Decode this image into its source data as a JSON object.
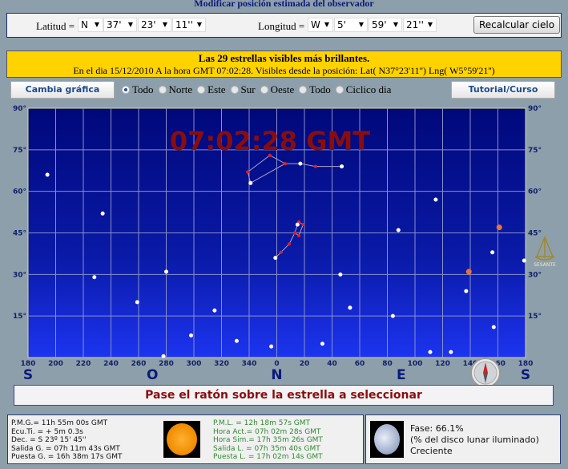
{
  "header": {
    "title": "Modificar posición estimada del observador"
  },
  "form": {
    "lat_label": "Latitud =",
    "lat": {
      "hemisphere": "N",
      "deg": "37'",
      "min": "23'",
      "sec": "11''"
    },
    "lng_label": "Longitud =",
    "lng": {
      "hemisphere": "W",
      "deg": "5'",
      "min": "59'",
      "sec": "21''"
    },
    "recalc_label": "Recalcular cielo"
  },
  "info": {
    "headline": "Las 29 estrellas visibles más brillantes.",
    "detail": "En el dia 15/12/2010 A la hora GMT 07:02:28. Visibles desde la posición: Lat( N37°23'11'') Lng( W5°59'21'')"
  },
  "controls": {
    "change_chart_label": "Cambia gráfica",
    "tutorial_label": "Tutorial/Curso",
    "radios": [
      {
        "label": "Todo",
        "checked": true
      },
      {
        "label": "Norte"
      },
      {
        "label": "Este"
      },
      {
        "label": "Sur"
      },
      {
        "label": "Oeste"
      },
      {
        "label": "Todo"
      },
      {
        "label": "Ciclico dia"
      }
    ]
  },
  "chart_data": {
    "type": "scatter",
    "overlay_time": "07:02:28 GMT",
    "xlim": [
      180,
      540
    ],
    "ylim": [
      0,
      90
    ],
    "grid": true,
    "x_ticks": [
      "180",
      "200",
      "220",
      "240",
      "260",
      "280",
      "300",
      "320",
      "340",
      "0",
      "20",
      "40",
      "60",
      "80",
      "100",
      "120",
      "140",
      "160",
      "180"
    ],
    "y_ticks": [
      "90°",
      "75°",
      "60°",
      "45°",
      "30°",
      "15°"
    ],
    "cardinals": [
      {
        "label": "S",
        "az": 180
      },
      {
        "label": "O",
        "az": 270
      },
      {
        "label": "N",
        "az": 360
      },
      {
        "label": "E",
        "az": 450
      },
      {
        "label": "S",
        "az": 540
      }
    ],
    "stars": [
      [
        194,
        66
      ],
      [
        234,
        52
      ],
      [
        228,
        29
      ],
      [
        259,
        20
      ],
      [
        280,
        31
      ],
      [
        298,
        8
      ],
      [
        315,
        17
      ],
      [
        331,
        6
      ],
      [
        278,
        0.5
      ],
      [
        341,
        63
      ],
      [
        356,
        4
      ],
      [
        359,
        36
      ],
      [
        377,
        70
      ],
      [
        407,
        69
      ],
      [
        393,
        5
      ],
      [
        406,
        30
      ],
      [
        413,
        18
      ],
      [
        375,
        48
      ],
      [
        448,
        46
      ],
      [
        444,
        15
      ],
      [
        475,
        57
      ],
      [
        471,
        2
      ],
      [
        486,
        2
      ],
      [
        497,
        24
      ],
      [
        516,
        38
      ],
      [
        517,
        11
      ],
      [
        539,
        35
      ]
    ],
    "planets": [
      [
        499,
        31
      ],
      [
        521,
        47
      ]
    ],
    "constellations": [
      [
        [
          339,
          67
        ],
        [
          355,
          73
        ],
        [
          366,
          70
        ],
        [
          341,
          63
        ],
        [
          339,
          67
        ]
      ],
      [
        [
          366,
          70
        ],
        [
          377,
          70
        ],
        [
          388,
          69
        ],
        [
          407,
          69
        ]
      ],
      [
        [
          359,
          36
        ],
        [
          363,
          38
        ],
        [
          369,
          41
        ],
        [
          373,
          45
        ],
        [
          375,
          48
        ],
        [
          376,
          49
        ],
        [
          379,
          48
        ],
        [
          376,
          44
        ],
        [
          373,
          45
        ]
      ]
    ],
    "colors": {
      "star": "#ffffff",
      "planet": "#f07030",
      "constellation": "#e02020",
      "time": "#8a0d0d"
    }
  },
  "message": "Pase el ratón sobre la estrella a seleccionar",
  "sun": {
    "left": [
      "P.M.G.= 11h 55m 00s GMT",
      "Ecu.Ti. = + 5m 0.3s",
      "Dec. = S 23º 15' 45''",
      "Salida G. = 07h 11m 43s GMT",
      "Puesta G. = 16h 38m 17s GMT"
    ],
    "right": [
      "P.M.L. = 12h 18m 57s GMT",
      "Hora Act.= 07h 02m 28s GMT",
      "Hora Sim.= 17h 35m 26s GMT",
      "Salida L. = 07h 35m 40s GMT",
      "Puesta L. = 17h 02m 14s GMT"
    ]
  },
  "moon": {
    "phase": "Fase: 66.1%",
    "note": "(% del disco lunar iluminado)",
    "state": "Creciente"
  },
  "logo": {
    "text": "SESANTE"
  }
}
